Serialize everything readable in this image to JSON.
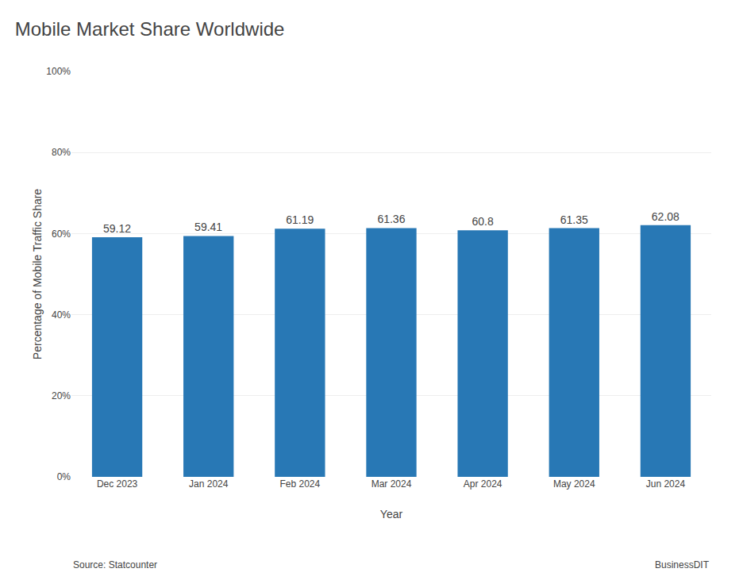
{
  "chart_data": {
    "type": "bar",
    "title": "Mobile Market Share Worldwide",
    "categories": [
      "Dec 2023",
      "Jan 2024",
      "Feb 2024",
      "Mar 2024",
      "Apr 2024",
      "May 2024",
      "Jun 2024"
    ],
    "values": [
      59.12,
      59.41,
      61.19,
      61.36,
      60.8,
      61.35,
      62.08
    ],
    "color": "#2878b5",
    "xlabel": "Year",
    "ylabel": "Percentage of Mobile Traffic Share",
    "ylim": [
      0,
      100
    ],
    "yticks": [
      {
        "value": 0,
        "label": "0%"
      },
      {
        "value": 20,
        "label": "20%"
      },
      {
        "value": 40,
        "label": "40%"
      },
      {
        "value": 60,
        "label": "60%"
      },
      {
        "value": 80,
        "label": "80%"
      },
      {
        "value": 100,
        "label": "100%"
      }
    ],
    "grid": true,
    "data_labels": true,
    "annotations": [
      "Source: Statcounter",
      "BusinessDIT"
    ]
  }
}
